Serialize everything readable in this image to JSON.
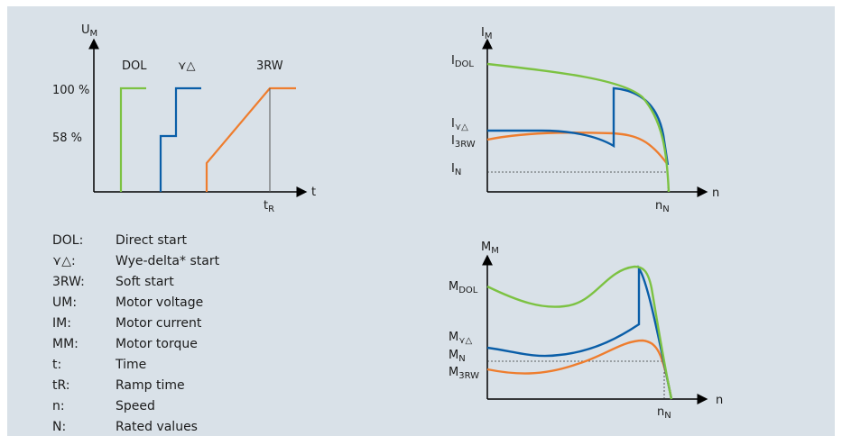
{
  "colors": {
    "dol": "#7cc242",
    "wye_delta": "#0a5ea8",
    "soft": "#ee7d2e",
    "axis": "#000000",
    "panel": "#d9e1e8"
  },
  "voltage_chart": {
    "y_axis": {
      "main": "U",
      "sub": "M"
    },
    "x_axis": "t",
    "y_ticks": [
      "100 %",
      "58 %"
    ],
    "series_labels": {
      "dol": "DOL",
      "wye_delta": "⋎△",
      "soft": "3RW"
    },
    "ramp_time": {
      "main": "t",
      "sub": "R"
    }
  },
  "current_chart": {
    "y_axis": {
      "main": "I",
      "sub": "M"
    },
    "x_axis": "n",
    "levels": [
      {
        "main": "I",
        "sub": "DOL"
      },
      {
        "main": "I",
        "sub": "⋎△"
      },
      {
        "main": "I",
        "sub": "3RW"
      },
      {
        "main": "I",
        "sub": "N"
      }
    ],
    "rated_speed": {
      "main": "n",
      "sub": "N"
    }
  },
  "torque_chart": {
    "y_axis": {
      "main": "M",
      "sub": "M"
    },
    "x_axis": "n",
    "levels": [
      {
        "main": "M",
        "sub": "DOL"
      },
      {
        "main": "M",
        "sub": "⋎△"
      },
      {
        "main": "M",
        "sub": "N"
      },
      {
        "main": "M",
        "sub": "3RW"
      }
    ],
    "rated_speed": {
      "main": "n",
      "sub": "N"
    }
  },
  "legend": [
    {
      "key": "DOL:",
      "value": "Direct start"
    },
    {
      "key": "⋎△:",
      "value": "Wye-delta* start"
    },
    {
      "key": "3RW:",
      "value": "Soft start"
    },
    {
      "key": "UM:",
      "value": "Motor voltage"
    },
    {
      "key": "IM:",
      "value": "Motor current"
    },
    {
      "key": "MM:",
      "value": "Motor torque"
    },
    {
      "key": "t:",
      "value": "Time"
    },
    {
      "key": "tR:",
      "value": "Ramp time"
    },
    {
      "key": "n:",
      "value": "Speed"
    },
    {
      "key": "N:",
      "value": "Rated values"
    }
  ]
}
